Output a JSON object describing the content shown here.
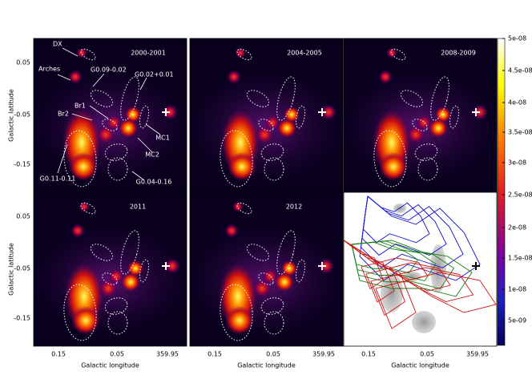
{
  "panels": [
    {
      "title": "2000-2001"
    },
    {
      "title": "2004-2005"
    },
    {
      "title": "2008-2009"
    },
    {
      "title": "2011"
    },
    {
      "title": "2012"
    },
    {
      "title": null
    }
  ],
  "annotations": [
    "DX",
    "Arches",
    "G0.09-0.02",
    "G0.02+0.01",
    "Br1",
    "Br2",
    "MC1",
    "MC2",
    "G0.11-0.11",
    "G0.04-0.16"
  ],
  "y_ticks": [
    "0.05",
    "-0.05",
    "-0.15"
  ],
  "x_ticks": [
    "0.15",
    "0.05",
    "359.95"
  ],
  "y_label": "Galactic latitude",
  "x_label": "Galactic longitude",
  "colorbar_ticks": [
    "5e-08",
    "4.5e-08",
    "4e-08",
    "3.5e-08",
    "3e-08",
    "2.5e-08",
    "2e-08",
    "1.5e-08",
    "1e-08",
    "5e-09"
  ]
}
